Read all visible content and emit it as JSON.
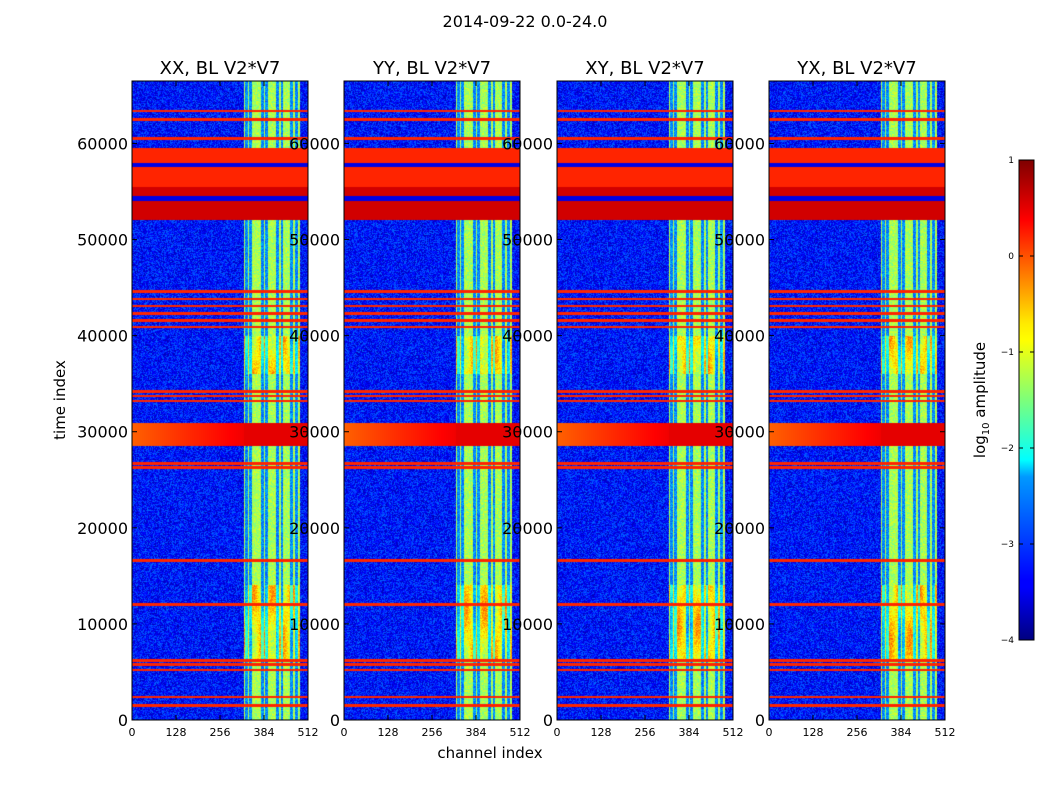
{
  "chart_data": {
    "type": "heatmap",
    "suptitle": "2014-09-22 0.0-24.0",
    "panels": [
      {
        "title": "XX, BL V2*V7"
      },
      {
        "title": "YY, BL V2*V7"
      },
      {
        "title": "XY, BL V2*V7"
      },
      {
        "title": "YX, BL V2*V7"
      }
    ],
    "xlabel": "channel index",
    "ylabel": "time index",
    "xlim": [
      0,
      512
    ],
    "ylim": [
      0,
      66500
    ],
    "xticks": [
      0,
      128,
      256,
      384,
      512
    ],
    "yticks": [
      0,
      10000,
      20000,
      30000,
      40000,
      50000,
      60000
    ],
    "colorbar": {
      "label_main": "log",
      "label_sub": "10",
      "label_rest": " amplitude",
      "range": [
        -4,
        1
      ],
      "ticks": [
        1,
        0,
        -1,
        -2,
        -3,
        -4
      ]
    },
    "background_level": -3.3,
    "bright_channel_band": [
      326,
      490
    ],
    "bright_channel_level": -1.3,
    "hot_channels": [
      334,
      345,
      380,
      392,
      423,
      436,
      465,
      478
    ],
    "flagged_time_bands": [
      {
        "t0": 55000,
        "t1": 59500,
        "level": 0.2
      },
      {
        "t0": 52000,
        "t1": 55500,
        "level": 0.6
      }
    ],
    "rfi_time_band": {
      "center": 29700,
      "width": 1200,
      "level": 0.5
    },
    "flag_lines": [
      1500,
      2400,
      5200,
      5800,
      6200,
      12000,
      16600,
      26300,
      26700,
      33200,
      33700,
      34200,
      40900,
      41600,
      42300,
      43100,
      43800,
      44600,
      56200,
      60500,
      62500,
      63400
    ]
  }
}
